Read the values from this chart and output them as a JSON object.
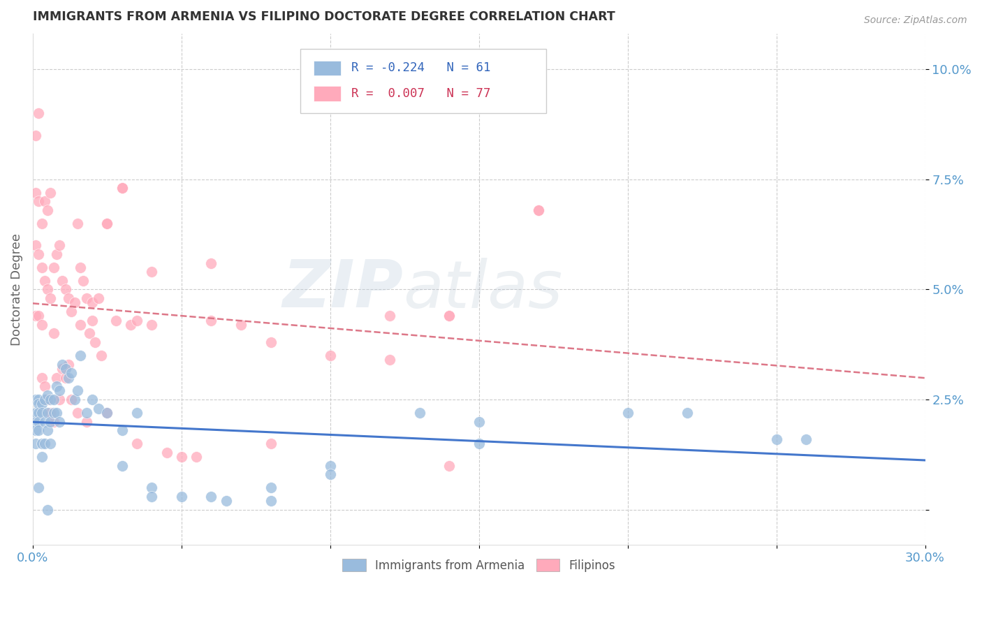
{
  "title": "IMMIGRANTS FROM ARMENIA VS FILIPINO DOCTORATE DEGREE CORRELATION CHART",
  "source": "Source: ZipAtlas.com",
  "ylabel": "Doctorate Degree",
  "xlim": [
    0.0,
    0.3
  ],
  "ylim": [
    -0.008,
    0.108
  ],
  "yticks": [
    0.0,
    0.025,
    0.05,
    0.075,
    0.1
  ],
  "ytick_labels": [
    "",
    "2.5%",
    "5.0%",
    "7.5%",
    "10.0%"
  ],
  "xticks": [
    0.0,
    0.05,
    0.1,
    0.15,
    0.2,
    0.25,
    0.3
  ],
  "xtick_labels": [
    "0.0%",
    "",
    "",
    "",
    "",
    "",
    "30.0%"
  ],
  "background_color": "#ffffff",
  "grid_color": "#cccccc",
  "watermark_zip": "ZIP",
  "watermark_atlas": "atlas",
  "blue_color": "#99bbdd",
  "pink_color": "#ffaabb",
  "blue_line_color": "#4477cc",
  "pink_line_color": "#dd7788",
  "axis_label_color": "#5599cc",
  "title_color": "#333333",
  "armenia_x": [
    0.001,
    0.001,
    0.001,
    0.001,
    0.001,
    0.002,
    0.002,
    0.002,
    0.002,
    0.002,
    0.003,
    0.003,
    0.003,
    0.003,
    0.004,
    0.004,
    0.004,
    0.005,
    0.005,
    0.005,
    0.006,
    0.006,
    0.006,
    0.007,
    0.007,
    0.008,
    0.008,
    0.009,
    0.009,
    0.01,
    0.011,
    0.012,
    0.013,
    0.014,
    0.015,
    0.016,
    0.018,
    0.02,
    0.022,
    0.025,
    0.03,
    0.035,
    0.04,
    0.05,
    0.065,
    0.08,
    0.1,
    0.13,
    0.15,
    0.2,
    0.22,
    0.25,
    0.26,
    0.15,
    0.1,
    0.08,
    0.06,
    0.04,
    0.03,
    0.005,
    0.002
  ],
  "armenia_y": [
    0.025,
    0.022,
    0.02,
    0.018,
    0.015,
    0.025,
    0.024,
    0.022,
    0.02,
    0.018,
    0.024,
    0.022,
    0.015,
    0.012,
    0.025,
    0.02,
    0.015,
    0.026,
    0.022,
    0.018,
    0.025,
    0.02,
    0.015,
    0.025,
    0.022,
    0.028,
    0.022,
    0.027,
    0.02,
    0.033,
    0.032,
    0.03,
    0.031,
    0.025,
    0.027,
    0.035,
    0.022,
    0.025,
    0.023,
    0.022,
    0.018,
    0.022,
    0.005,
    0.003,
    0.002,
    0.002,
    0.01,
    0.022,
    0.02,
    0.022,
    0.022,
    0.016,
    0.016,
    0.015,
    0.008,
    0.005,
    0.003,
    0.003,
    0.01,
    0.0,
    0.005
  ],
  "filipino_x": [
    0.001,
    0.001,
    0.001,
    0.001,
    0.002,
    0.002,
    0.002,
    0.002,
    0.003,
    0.003,
    0.003,
    0.003,
    0.004,
    0.004,
    0.004,
    0.005,
    0.005,
    0.005,
    0.006,
    0.006,
    0.006,
    0.007,
    0.007,
    0.007,
    0.008,
    0.008,
    0.009,
    0.009,
    0.01,
    0.01,
    0.011,
    0.011,
    0.012,
    0.012,
    0.013,
    0.013,
    0.014,
    0.015,
    0.015,
    0.016,
    0.016,
    0.017,
    0.018,
    0.018,
    0.019,
    0.02,
    0.02,
    0.021,
    0.022,
    0.023,
    0.025,
    0.025,
    0.028,
    0.03,
    0.033,
    0.035,
    0.04,
    0.045,
    0.05,
    0.06,
    0.07,
    0.08,
    0.1,
    0.12,
    0.14,
    0.17,
    0.025,
    0.03,
    0.04,
    0.06,
    0.14,
    0.08,
    0.12,
    0.17,
    0.14,
    0.035,
    0.055
  ],
  "filipino_y": [
    0.085,
    0.072,
    0.06,
    0.044,
    0.09,
    0.07,
    0.058,
    0.044,
    0.065,
    0.055,
    0.042,
    0.03,
    0.07,
    0.052,
    0.028,
    0.068,
    0.05,
    0.025,
    0.072,
    0.048,
    0.022,
    0.055,
    0.04,
    0.02,
    0.058,
    0.03,
    0.06,
    0.025,
    0.052,
    0.032,
    0.05,
    0.03,
    0.048,
    0.033,
    0.045,
    0.025,
    0.047,
    0.065,
    0.022,
    0.055,
    0.042,
    0.052,
    0.048,
    0.02,
    0.04,
    0.047,
    0.043,
    0.038,
    0.048,
    0.035,
    0.065,
    0.022,
    0.043,
    0.073,
    0.042,
    0.043,
    0.042,
    0.013,
    0.012,
    0.043,
    0.042,
    0.038,
    0.035,
    0.034,
    0.044,
    0.068,
    0.065,
    0.073,
    0.054,
    0.056,
    0.044,
    0.015,
    0.044,
    0.068,
    0.01,
    0.015,
    0.012
  ]
}
